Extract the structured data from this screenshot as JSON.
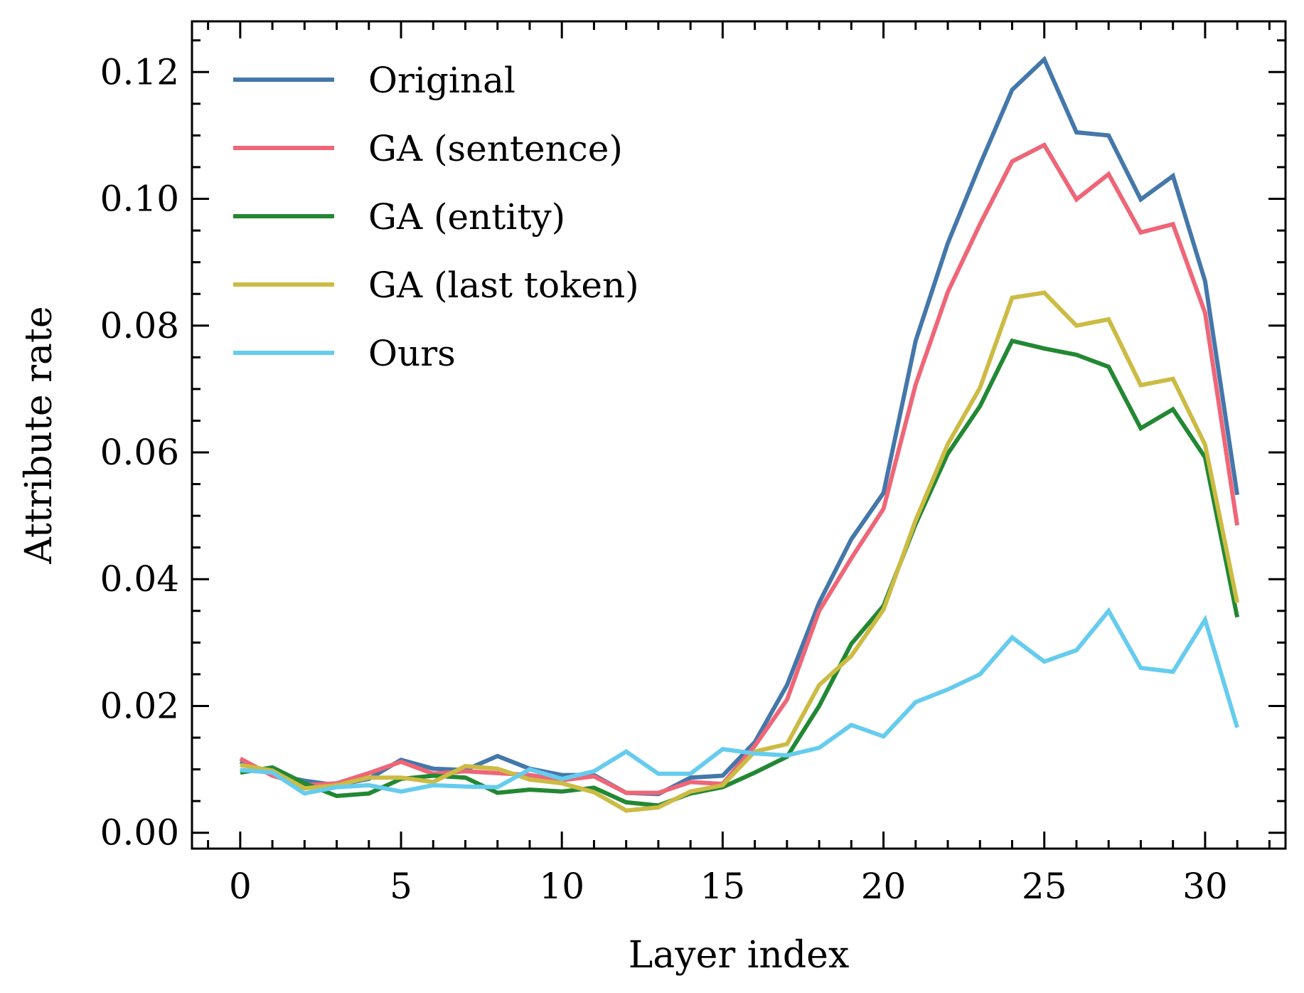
{
  "chart_data": {
    "type": "line",
    "title": "",
    "xlabel": "Layer index",
    "ylabel": "Attribute rate",
    "xlim": [
      -1.5,
      32.5
    ],
    "ylim": [
      -0.0025,
      0.128
    ],
    "xticks": [
      0,
      5,
      10,
      15,
      20,
      25,
      30
    ],
    "yticks": [
      0.0,
      0.02,
      0.04,
      0.06,
      0.08,
      0.1,
      0.12
    ],
    "xtick_labels": [
      "0",
      "5",
      "10",
      "15",
      "20",
      "25",
      "30"
    ],
    "ytick_labels": [
      "0.00",
      "0.02",
      "0.04",
      "0.06",
      "0.08",
      "0.10",
      "0.12"
    ],
    "legend_position": "top-left",
    "x": [
      0,
      1,
      2,
      3,
      4,
      5,
      6,
      7,
      8,
      9,
      10,
      11,
      12,
      13,
      14,
      15,
      16,
      17,
      18,
      19,
      20,
      21,
      22,
      23,
      24,
      25,
      26,
      27,
      28,
      29,
      30,
      31
    ],
    "series": [
      {
        "name": "Original",
        "color": "#4477AA",
        "values": [
          0.0112,
          0.0092,
          0.0082,
          0.0075,
          0.0085,
          0.0115,
          0.0101,
          0.0099,
          0.0121,
          0.0101,
          0.0091,
          0.0091,
          0.0063,
          0.0061,
          0.0087,
          0.009,
          0.0143,
          0.0233,
          0.0363,
          0.0463,
          0.0536,
          0.0776,
          0.093,
          0.1054,
          0.1172,
          0.122,
          0.1105,
          0.11,
          0.0999,
          0.1036,
          0.087,
          0.0533
        ]
      },
      {
        "name": "GA (sentence)",
        "color": "#EE6677",
        "values": [
          0.0117,
          0.009,
          0.0075,
          0.0078,
          0.0094,
          0.0112,
          0.0093,
          0.0097,
          0.0094,
          0.0091,
          0.0083,
          0.0089,
          0.0063,
          0.0063,
          0.008,
          0.0077,
          0.0137,
          0.021,
          0.035,
          0.0433,
          0.0511,
          0.0707,
          0.0853,
          0.096,
          0.1059,
          0.1085,
          0.0999,
          0.1039,
          0.0947,
          0.096,
          0.082,
          0.0485
        ]
      },
      {
        "name": "GA (entity)",
        "color": "#228833",
        "values": [
          0.0095,
          0.0103,
          0.0078,
          0.0058,
          0.0062,
          0.0085,
          0.009,
          0.0087,
          0.0063,
          0.0068,
          0.0065,
          0.0071,
          0.0048,
          0.0043,
          0.0062,
          0.0072,
          0.0095,
          0.012,
          0.02,
          0.0298,
          0.0358,
          0.0487,
          0.0598,
          0.0673,
          0.0776,
          0.0764,
          0.0754,
          0.0735,
          0.0638,
          0.0668,
          0.0592,
          0.034
        ]
      },
      {
        "name": "GA (last token)",
        "color": "#CCBB44",
        "values": [
          0.0107,
          0.0098,
          0.007,
          0.0075,
          0.0087,
          0.0087,
          0.008,
          0.0105,
          0.0101,
          0.0084,
          0.0078,
          0.0064,
          0.0035,
          0.004,
          0.0065,
          0.0075,
          0.0128,
          0.014,
          0.0233,
          0.0279,
          0.0352,
          0.0493,
          0.0613,
          0.0702,
          0.0844,
          0.0852,
          0.08,
          0.081,
          0.0706,
          0.0716,
          0.0612,
          0.0363
        ]
      },
      {
        "name": "Ours",
        "color": "#66CCEE",
        "values": [
          0.0099,
          0.0095,
          0.0062,
          0.0072,
          0.0075,
          0.0065,
          0.0075,
          0.0073,
          0.0072,
          0.01,
          0.0085,
          0.0097,
          0.0128,
          0.0093,
          0.0093,
          0.0132,
          0.0125,
          0.0122,
          0.0134,
          0.017,
          0.0152,
          0.0206,
          0.0226,
          0.025,
          0.0308,
          0.027,
          0.0288,
          0.035,
          0.026,
          0.0254,
          0.0336,
          0.0166
        ]
      }
    ]
  }
}
